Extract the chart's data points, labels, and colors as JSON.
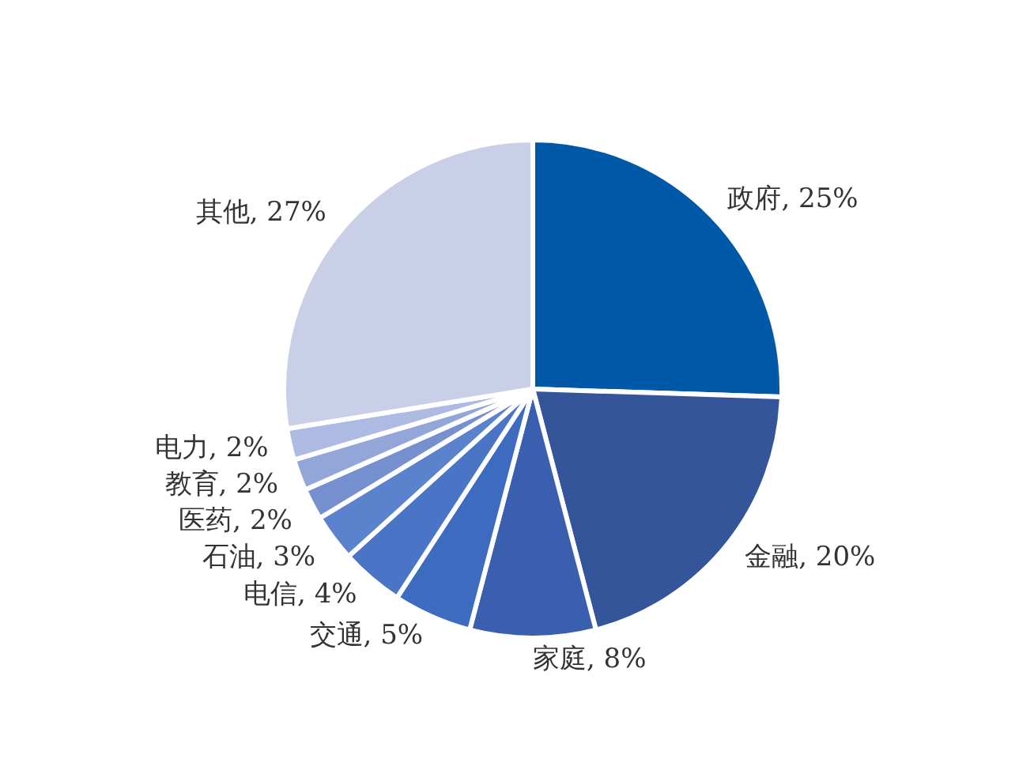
{
  "chart_data": {
    "type": "pie",
    "categories": [
      "政府",
      "金融",
      "家庭",
      "交通",
      "电信",
      "石油",
      "医药",
      "教育",
      "电力",
      "其他"
    ],
    "values": [
      25,
      20,
      8,
      5,
      4,
      3,
      2,
      2,
      2,
      27
    ],
    "value_labels": [
      "25%",
      "20%",
      "8%",
      "5%",
      "4%",
      "3%",
      "2%",
      "2%",
      "2%",
      "27%"
    ],
    "colors": [
      "#0058a8",
      "#34559a",
      "#3a5fae",
      "#3d6bc0",
      "#4a74c6",
      "#5b82cc",
      "#7690cf",
      "#93a6d8",
      "#adbbe2",
      "#c9cfe6"
    ]
  }
}
